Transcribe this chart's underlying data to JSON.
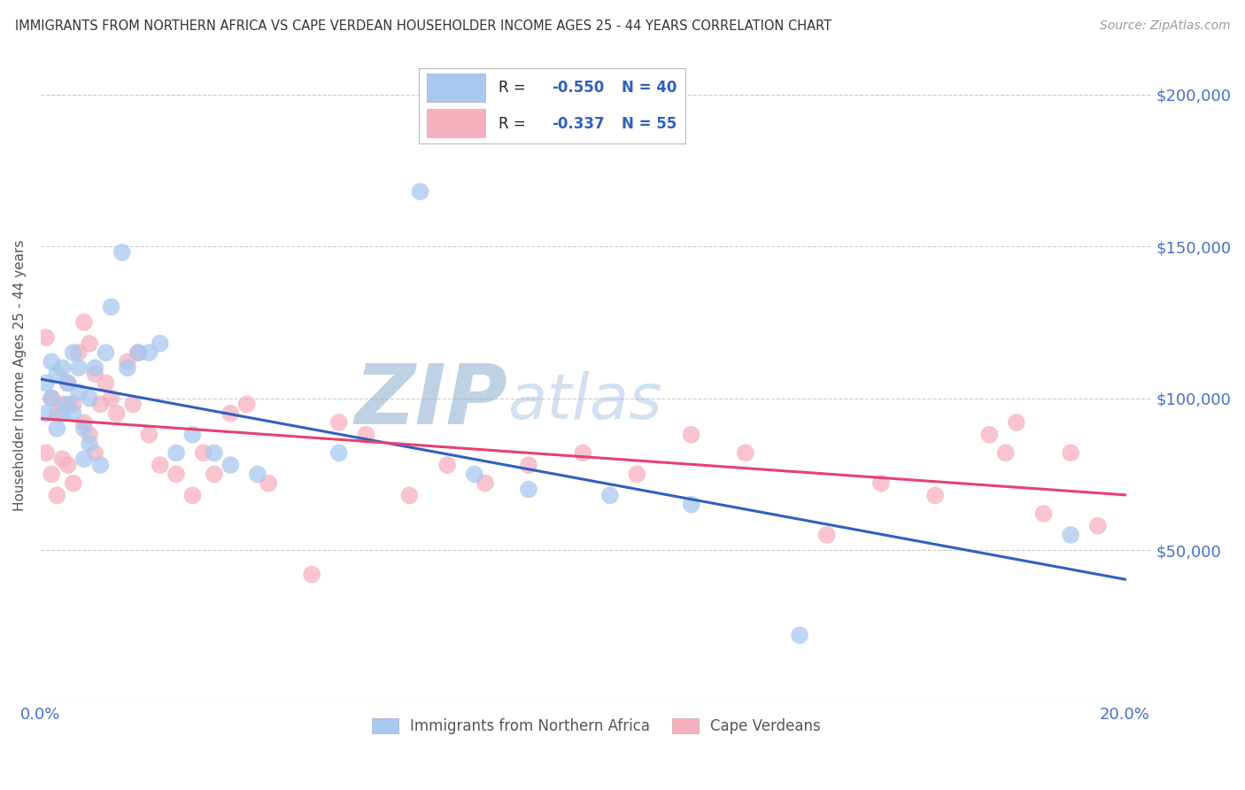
{
  "title": "IMMIGRANTS FROM NORTHERN AFRICA VS CAPE VERDEAN HOUSEHOLDER INCOME AGES 25 - 44 YEARS CORRELATION CHART",
  "source": "Source: ZipAtlas.com",
  "ylabel": "Householder Income Ages 25 - 44 years",
  "legend_r_label": "R = ",
  "legend_blue_val": "-0.550",
  "legend_blue_n": "N = 40",
  "legend_pink_val": "-0.337",
  "legend_pink_n": "N = 55",
  "blue_scatter_color": "#A8C8F0",
  "pink_scatter_color": "#F5B0C0",
  "blue_line_color": "#3060C0",
  "pink_line_color": "#E84070",
  "axis_label_color": "#4472C4",
  "legend_val_color": "#3060C0",
  "grid_color": "#CCCCCC",
  "title_color": "#333333",
  "yticks": [
    0,
    50000,
    100000,
    150000,
    200000
  ],
  "ytick_labels": [
    "",
    "$50,000",
    "$100,000",
    "$150,000",
    "$200,000"
  ],
  "xlim": [
    0.0,
    0.205
  ],
  "ylim": [
    0,
    215000
  ],
  "blue_points_x": [
    0.001,
    0.001,
    0.002,
    0.002,
    0.003,
    0.003,
    0.004,
    0.004,
    0.005,
    0.005,
    0.006,
    0.006,
    0.007,
    0.007,
    0.008,
    0.008,
    0.009,
    0.009,
    0.01,
    0.011,
    0.012,
    0.013,
    0.015,
    0.016,
    0.018,
    0.02,
    0.022,
    0.025,
    0.028,
    0.032,
    0.035,
    0.04,
    0.055,
    0.07,
    0.08,
    0.09,
    0.105,
    0.12,
    0.14,
    0.19
  ],
  "blue_points_y": [
    105000,
    95000,
    112000,
    100000,
    108000,
    90000,
    110000,
    95000,
    105000,
    98000,
    115000,
    95000,
    110000,
    102000,
    90000,
    80000,
    100000,
    85000,
    110000,
    78000,
    115000,
    130000,
    148000,
    110000,
    115000,
    115000,
    118000,
    82000,
    88000,
    82000,
    78000,
    75000,
    82000,
    168000,
    75000,
    70000,
    68000,
    65000,
    22000,
    55000
  ],
  "pink_points_x": [
    0.001,
    0.001,
    0.002,
    0.002,
    0.003,
    0.003,
    0.004,
    0.004,
    0.005,
    0.005,
    0.006,
    0.006,
    0.007,
    0.008,
    0.008,
    0.009,
    0.009,
    0.01,
    0.01,
    0.011,
    0.012,
    0.013,
    0.014,
    0.016,
    0.017,
    0.018,
    0.02,
    0.022,
    0.025,
    0.028,
    0.03,
    0.032,
    0.035,
    0.038,
    0.042,
    0.05,
    0.055,
    0.06,
    0.068,
    0.075,
    0.082,
    0.09,
    0.1,
    0.11,
    0.12,
    0.13,
    0.145,
    0.155,
    0.165,
    0.175,
    0.178,
    0.18,
    0.185,
    0.19,
    0.195
  ],
  "pink_points_y": [
    120000,
    82000,
    100000,
    75000,
    95000,
    68000,
    98000,
    80000,
    105000,
    78000,
    98000,
    72000,
    115000,
    125000,
    92000,
    118000,
    88000,
    108000,
    82000,
    98000,
    105000,
    100000,
    95000,
    112000,
    98000,
    115000,
    88000,
    78000,
    75000,
    68000,
    82000,
    75000,
    95000,
    98000,
    72000,
    42000,
    92000,
    88000,
    68000,
    78000,
    72000,
    78000,
    82000,
    75000,
    88000,
    82000,
    55000,
    72000,
    68000,
    88000,
    82000,
    92000,
    62000,
    82000,
    58000
  ]
}
